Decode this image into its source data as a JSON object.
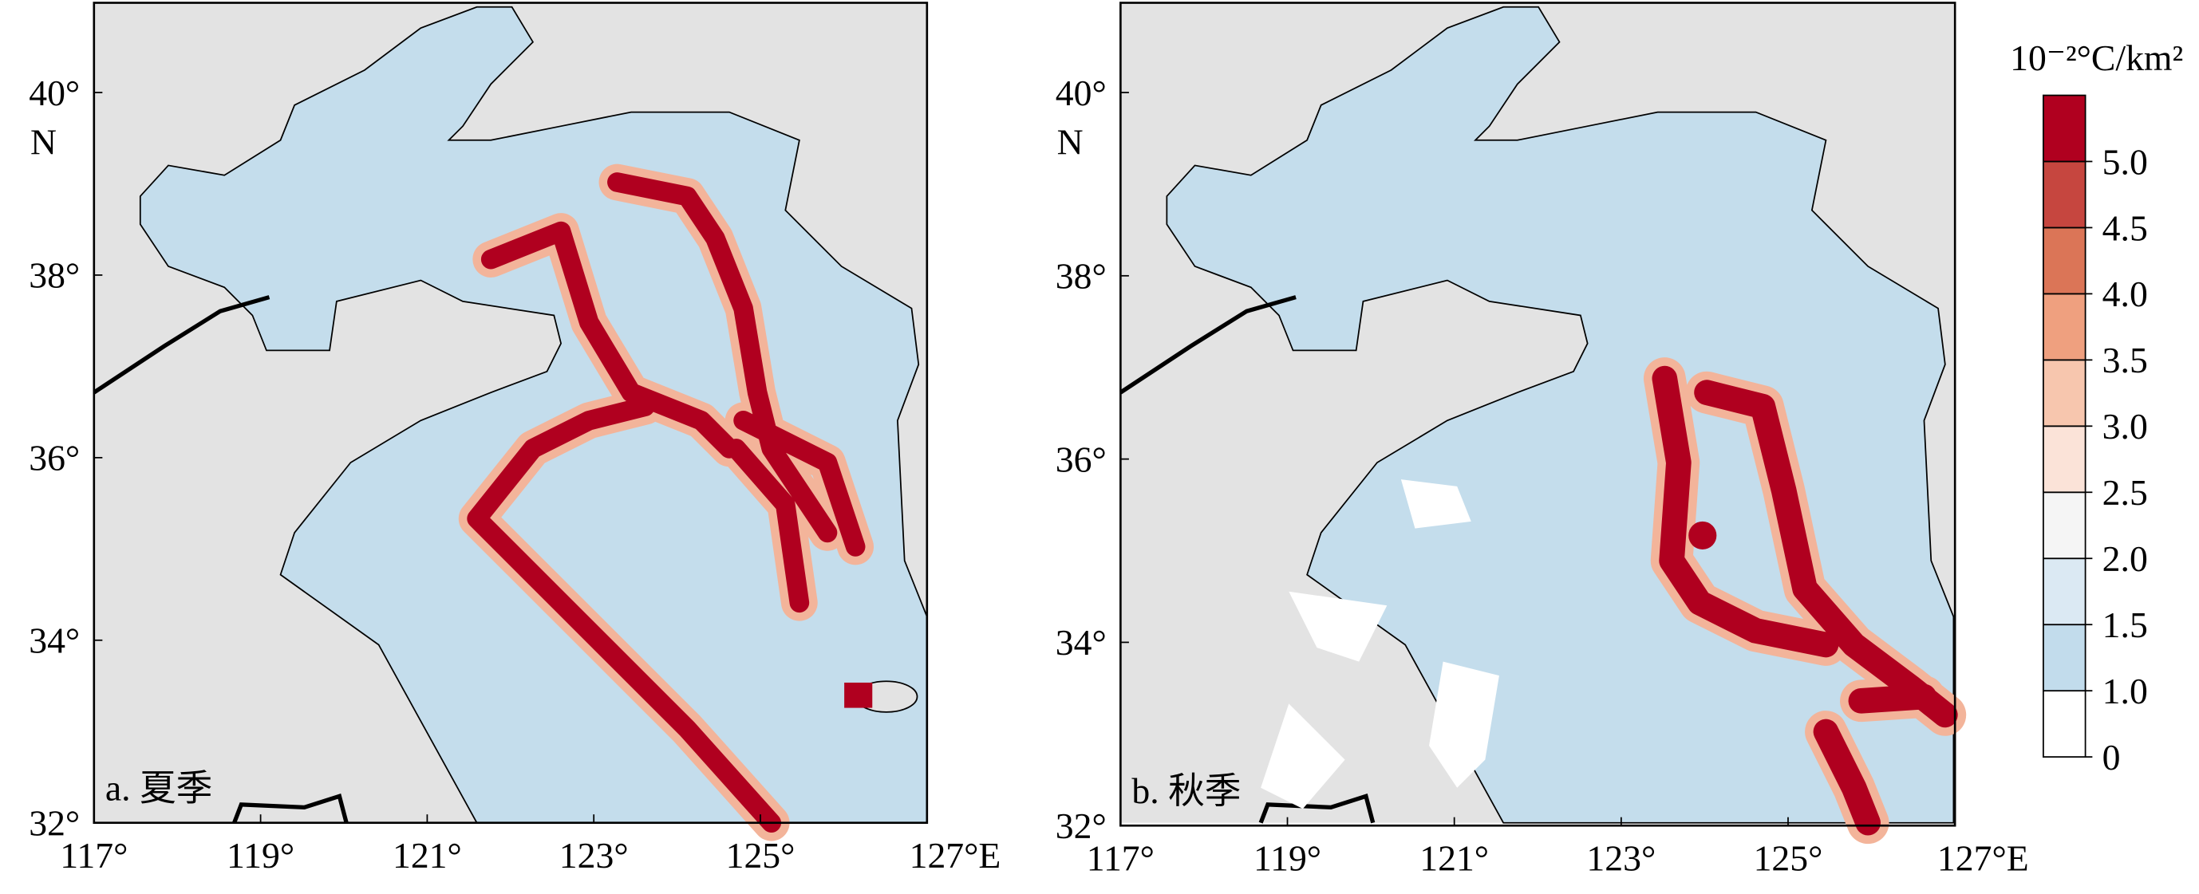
{
  "panels": [
    {
      "label": "a. 夏季",
      "xticks": [
        "117°",
        "119°",
        "121°",
        "123°",
        "125°",
        "127°E"
      ],
      "yticks": [
        "32°",
        "34°",
        "36°",
        "38°",
        "40°"
      ],
      "ylabel": "N"
    },
    {
      "label": "b. 秋季",
      "xticks": [
        "117°",
        "119°",
        "121°",
        "123°",
        "125°",
        "127°E"
      ],
      "yticks": [
        "32°",
        "34°",
        "36°",
        "38°",
        "40°"
      ],
      "ylabel": "N"
    }
  ],
  "colorbar": {
    "title": "10⁻²°C/km²",
    "ticks": [
      0,
      {
        "value": 1,
        "label": "1.0"
      },
      1.5,
      {
        "value": 2,
        "label": "2.0"
      },
      2.5,
      {
        "value": 3,
        "label": "3.0"
      },
      3.5,
      {
        "value": 4,
        "label": "4.0"
      },
      4.5,
      {
        "value": 5,
        "label": "5.0"
      }
    ],
    "colors": [
      "#ffffff",
      "#c2dcec",
      "#dbe9f3",
      "#f5f5f5",
      "#fbe3d8",
      "#f7c6ae",
      "#efa07f",
      "#db7557",
      "#c6463f",
      "#b0001f"
    ]
  }
}
